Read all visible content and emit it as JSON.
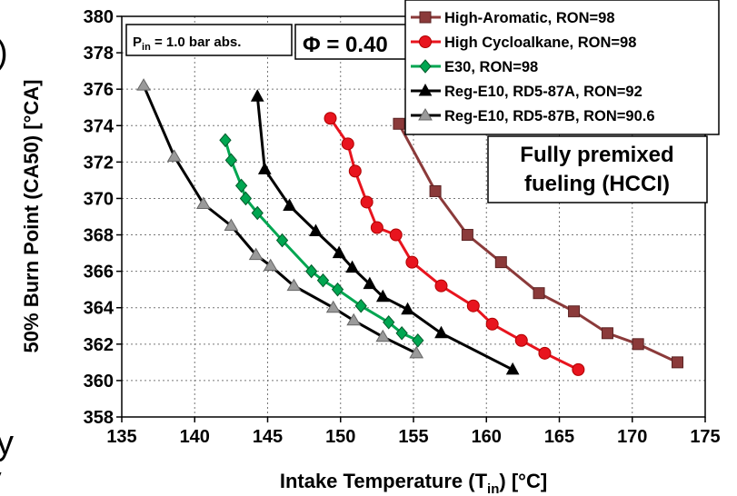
{
  "chart_data": {
    "type": "line",
    "xlabel": "Intake Temperature (T",
    "xlabel_sub": "in",
    "xlabel_tail": ") [°C]",
    "ylabel": "50% Burn Point (CA50) [°CA]",
    "xlim": [
      135,
      175
    ],
    "ylim": [
      358,
      380
    ],
    "xticks": [
      135,
      140,
      145,
      150,
      155,
      160,
      165,
      170,
      175
    ],
    "yticks": [
      358,
      360,
      362,
      364,
      366,
      368,
      370,
      372,
      374,
      376,
      378,
      380
    ],
    "grid": "dotted",
    "legend_position": "top-right",
    "annotations": {
      "pressure": {
        "prefix": "P",
        "sub": "in",
        "rest": " = 1.0 bar abs."
      },
      "phi": "Φ = 0.40",
      "mode_line1": "Fully premixed",
      "mode_line2": "fueling (HCCI)"
    },
    "clipped_text": [
      ")",
      "y",
      "ry"
    ],
    "series": [
      {
        "name": "High-Aromatic, RON=98",
        "color": "#8B3A3A",
        "marker": "square",
        "points": [
          [
            154.0,
            374.1
          ],
          [
            156.5,
            370.4
          ],
          [
            158.7,
            368.0
          ],
          [
            161.0,
            366.5
          ],
          [
            163.6,
            364.8
          ],
          [
            166.0,
            363.8
          ],
          [
            168.3,
            362.6
          ],
          [
            170.4,
            362.0
          ],
          [
            173.1,
            361.0
          ]
        ]
      },
      {
        "name": "High Cycloalkane, RON=98",
        "color": "#E8141E",
        "marker": "circle",
        "points": [
          [
            149.3,
            374.4
          ],
          [
            150.5,
            373.0
          ],
          [
            151.0,
            371.5
          ],
          [
            151.8,
            369.8
          ],
          [
            152.5,
            368.4
          ],
          [
            153.8,
            368.0
          ],
          [
            154.9,
            366.5
          ],
          [
            156.9,
            365.2
          ],
          [
            159.1,
            364.1
          ],
          [
            160.4,
            363.1
          ],
          [
            162.4,
            362.2
          ],
          [
            164.0,
            361.5
          ],
          [
            166.3,
            360.6
          ]
        ]
      },
      {
        "name": "E30, RON=98",
        "color": "#00A651",
        "marker": "diamond",
        "points": [
          [
            142.1,
            373.2
          ],
          [
            142.5,
            372.1
          ],
          [
            143.2,
            370.7
          ],
          [
            143.5,
            370.0
          ],
          [
            144.3,
            369.2
          ],
          [
            146.0,
            367.7
          ],
          [
            148.0,
            366.0
          ],
          [
            148.8,
            365.5
          ],
          [
            149.8,
            365.0
          ],
          [
            151.4,
            364.1
          ],
          [
            153.3,
            363.2
          ],
          [
            154.2,
            362.6
          ],
          [
            155.3,
            362.2
          ]
        ]
      },
      {
        "name": "Reg-E10, RD5-87A, RON=92",
        "color": "#000000",
        "marker": "triangle",
        "points": [
          [
            144.3,
            375.6
          ],
          [
            144.8,
            371.6
          ],
          [
            146.5,
            369.6
          ],
          [
            148.3,
            368.2
          ],
          [
            149.9,
            367.0
          ],
          [
            150.8,
            366.2
          ],
          [
            152.0,
            365.3
          ],
          [
            152.9,
            364.6
          ],
          [
            154.6,
            363.9
          ],
          [
            156.9,
            362.6
          ],
          [
            161.8,
            360.6
          ]
        ]
      },
      {
        "name": "Reg-E10, RD5-87B, RON=90.6",
        "color": "#000000",
        "marker": "triangle-gray",
        "points": [
          [
            136.5,
            376.2
          ],
          [
            138.6,
            372.3
          ],
          [
            140.6,
            369.7
          ],
          [
            142.5,
            368.5
          ],
          [
            144.2,
            366.9
          ],
          [
            145.2,
            366.3
          ],
          [
            146.8,
            365.2
          ],
          [
            149.5,
            364.0
          ],
          [
            150.9,
            363.3
          ],
          [
            152.9,
            362.4
          ],
          [
            155.2,
            361.5
          ]
        ]
      }
    ]
  }
}
